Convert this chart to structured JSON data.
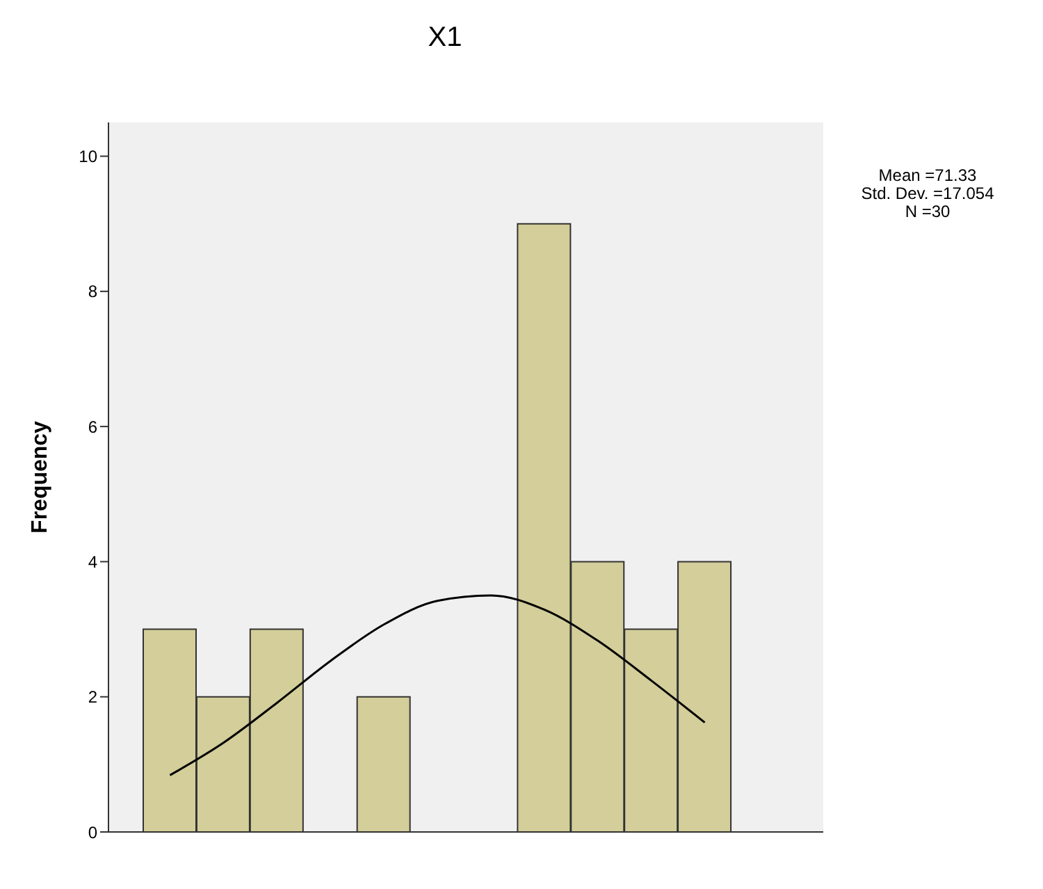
{
  "chart_data": {
    "type": "bar",
    "title": "X1",
    "ylabel": "Frequency",
    "categories": [
      null,
      null,
      null,
      null,
      null,
      null,
      null,
      null,
      null,
      null,
      null
    ],
    "series": [
      {
        "color": "#d3ce9a",
        "values": [
          3,
          2,
          3,
          0,
          2,
          0,
          0,
          9,
          4,
          3,
          4
        ]
      },
      {
        "type": "line",
        "color": "#000000",
        "values": [
          0.84,
          1.32,
          1.91,
          2.53,
          3.07,
          3.42,
          3.5,
          3.29,
          2.83,
          2.24,
          1.62
        ]
      }
    ],
    "annotations": [
      "Mean =71.33",
      "Std. Dev. =17.054",
      "N =30"
    ],
    "ylim": [
      0,
      10.5
    ],
    "yticks": [
      0,
      2,
      4,
      6,
      8,
      10
    ],
    "tick_labels": "y",
    "marker": "none",
    "line_style": "solid"
  }
}
